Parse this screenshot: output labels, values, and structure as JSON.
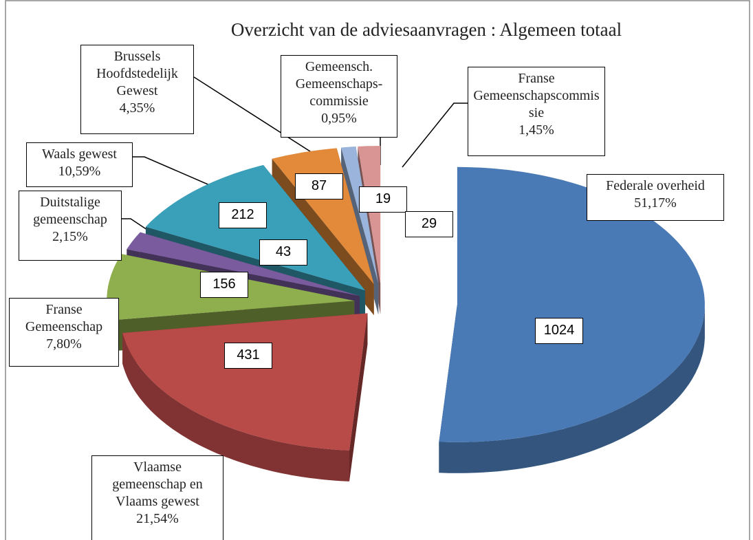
{
  "chart_data": {
    "type": "pie",
    "title": "Overzicht van de adviesaanvragen : Algemeen totaal",
    "categories": [
      "Federale overheid",
      "Vlaamse gemeenschap en Vlaams gewest",
      "Franse Gemeenschap",
      "Duitstalige gemeenschap",
      "Waals gewest",
      "Brussels Hoofdstedelijk Gewest",
      "Gemeensch. Gemeenschaps-commissie",
      "Franse Gemeenschapscommissie"
    ],
    "values": [
      1024,
      431,
      156,
      43,
      212,
      87,
      19,
      29
    ],
    "percentages": [
      51.17,
      21.54,
      7.8,
      2.15,
      10.59,
      4.35,
      0.95,
      1.45
    ],
    "percentage_labels": [
      "51,17%",
      "21,54%",
      "7,80%",
      "2,15%",
      "10,59%",
      "4,35%",
      "0,95%",
      "1,45%"
    ],
    "colors": [
      "#4a7ab5",
      "#b84a48",
      "#8fae4e",
      "#7a5c9e",
      "#3a9fb8",
      "#e28a3a",
      "#9bb4dc",
      "#d99594"
    ]
  }
}
